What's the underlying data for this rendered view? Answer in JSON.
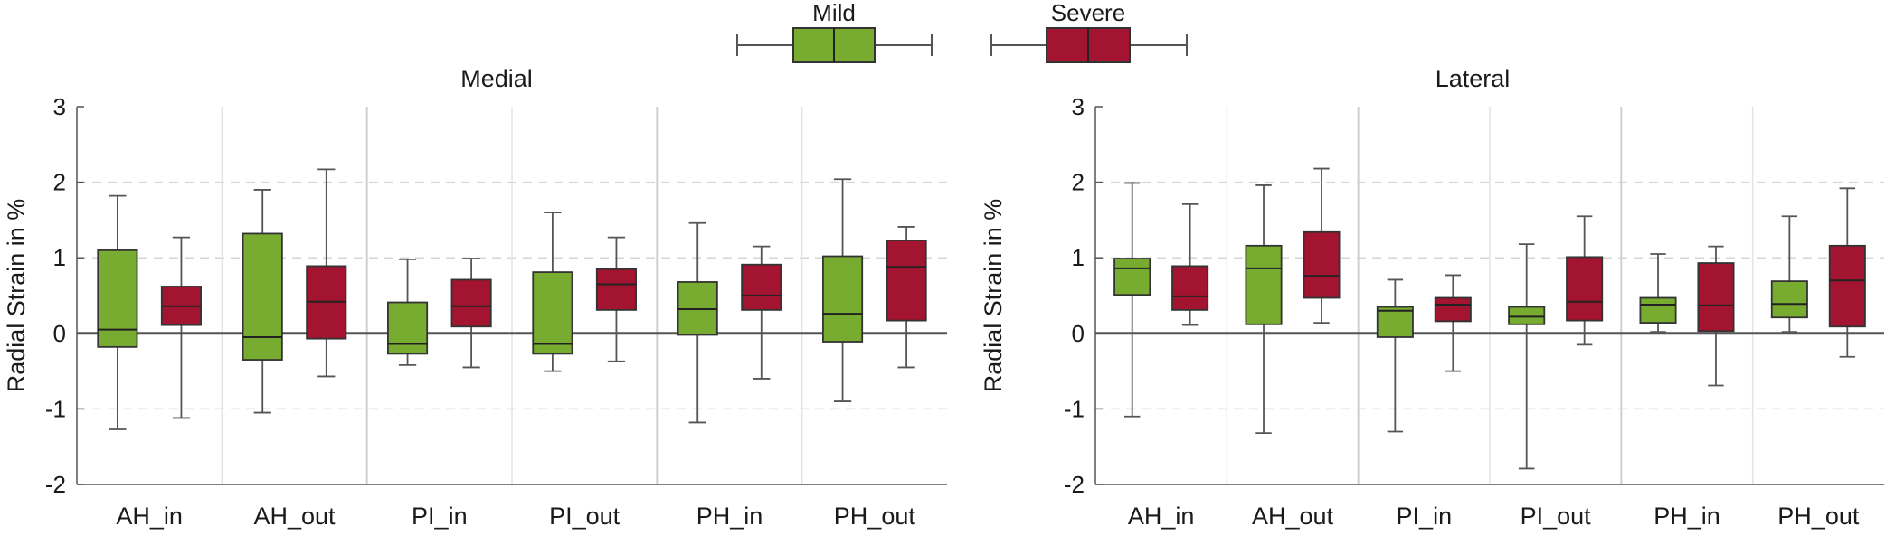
{
  "legend": {
    "items": [
      {
        "label": "Mild",
        "color": "#77ac30"
      },
      {
        "label": "Severe",
        "color": "#a2142f"
      }
    ]
  },
  "chart_data": [
    {
      "type": "box",
      "title": "Medial",
      "xlabel": "",
      "ylabel": "Radial Strain in %",
      "ylim": [
        -2,
        3
      ],
      "yticks": [
        -2,
        -1,
        0,
        1,
        2,
        3
      ],
      "ytick_labels": [
        "-2",
        "-1",
        "0",
        "1",
        "2",
        "3"
      ],
      "categories": [
        "AH_in",
        "AH_out",
        "PI_in",
        "PI_out",
        "PH_in",
        "PH_out"
      ],
      "grid": "y dashed",
      "series": [
        {
          "name": "Mild",
          "boxes": [
            {
              "min": -1.27,
              "q1": -0.18,
              "median": 0.05,
              "q3": 1.1,
              "max": 1.82
            },
            {
              "min": -1.05,
              "q1": -0.35,
              "median": -0.05,
              "q3": 1.32,
              "max": 1.9
            },
            {
              "min": -0.42,
              "q1": -0.27,
              "median": -0.14,
              "q3": 0.41,
              "max": 0.98
            },
            {
              "min": -0.5,
              "q1": -0.27,
              "median": -0.14,
              "q3": 0.81,
              "max": 1.6
            },
            {
              "min": -1.18,
              "q1": -0.02,
              "median": 0.32,
              "q3": 0.68,
              "max": 1.46
            },
            {
              "min": -0.9,
              "q1": -0.11,
              "median": 0.26,
              "q3": 1.02,
              "max": 2.04
            }
          ]
        },
        {
          "name": "Severe",
          "boxes": [
            {
              "min": -1.12,
              "q1": 0.11,
              "median": 0.36,
              "q3": 0.62,
              "max": 1.27
            },
            {
              "min": -0.57,
              "q1": -0.07,
              "median": 0.42,
              "q3": 0.89,
              "max": 2.17
            },
            {
              "min": -0.45,
              "q1": 0.09,
              "median": 0.36,
              "q3": 0.71,
              "max": 0.99
            },
            {
              "min": -0.37,
              "q1": 0.31,
              "median": 0.65,
              "q3": 0.85,
              "max": 1.27
            },
            {
              "min": -0.6,
              "q1": 0.31,
              "median": 0.5,
              "q3": 0.91,
              "max": 1.15
            },
            {
              "min": -0.45,
              "q1": 0.17,
              "median": 0.88,
              "q3": 1.23,
              "max": 1.41
            }
          ]
        }
      ]
    },
    {
      "type": "box",
      "title": "Lateral",
      "xlabel": "",
      "ylabel": "Radial Strain in %",
      "ylim": [
        -2,
        3
      ],
      "yticks": [
        -2,
        -1,
        0,
        1,
        2,
        3
      ],
      "ytick_labels": [
        "-2",
        "-1",
        "0",
        "1",
        "2",
        "3"
      ],
      "categories": [
        "AH_in",
        "AH_out",
        "PI_in",
        "PI_out",
        "PH_in",
        "PH_out"
      ],
      "grid": "y dashed",
      "series": [
        {
          "name": "Mild",
          "boxes": [
            {
              "min": -1.1,
              "q1": 0.51,
              "median": 0.86,
              "q3": 0.99,
              "max": 1.99
            },
            {
              "min": -1.32,
              "q1": 0.12,
              "median": 0.86,
              "q3": 1.16,
              "max": 1.96
            },
            {
              "min": -1.3,
              "q1": -0.05,
              "median": 0.3,
              "q3": 0.35,
              "max": 0.71
            },
            {
              "min": -1.79,
              "q1": 0.12,
              "median": 0.22,
              "q3": 0.35,
              "max": 1.18
            },
            {
              "min": 0.02,
              "q1": 0.14,
              "median": 0.38,
              "q3": 0.47,
              "max": 1.05
            },
            {
              "min": 0.02,
              "q1": 0.21,
              "median": 0.39,
              "q3": 0.69,
              "max": 1.55
            }
          ]
        },
        {
          "name": "Severe",
          "boxes": [
            {
              "min": 0.11,
              "q1": 0.31,
              "median": 0.49,
              "q3": 0.89,
              "max": 1.71
            },
            {
              "min": 0.14,
              "q1": 0.47,
              "median": 0.76,
              "q3": 1.34,
              "max": 2.18
            },
            {
              "min": -0.5,
              "q1": 0.16,
              "median": 0.38,
              "q3": 0.47,
              "max": 0.77
            },
            {
              "min": -0.15,
              "q1": 0.17,
              "median": 0.42,
              "q3": 1.01,
              "max": 1.55
            },
            {
              "min": -0.69,
              "q1": 0.03,
              "median": 0.37,
              "q3": 0.93,
              "max": 1.15
            },
            {
              "min": -0.31,
              "q1": 0.09,
              "median": 0.7,
              "q3": 1.16,
              "max": 1.92
            }
          ]
        }
      ]
    }
  ]
}
